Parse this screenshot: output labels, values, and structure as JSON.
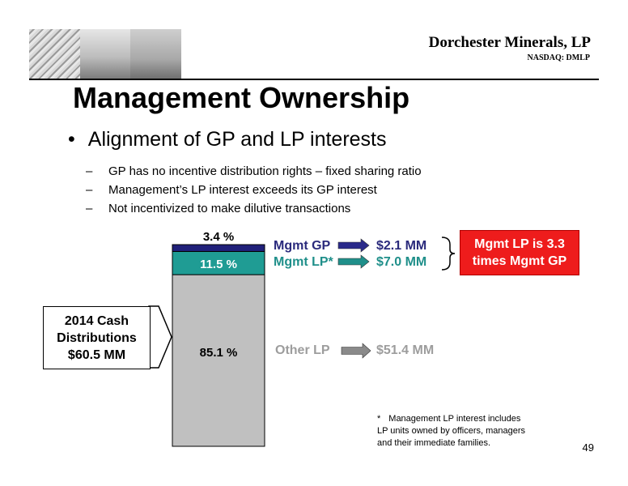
{
  "header": {
    "company": "Dorchester Minerals, LP",
    "ticker": "NASDAQ: DMLP"
  },
  "title": "Management Ownership",
  "bullet": {
    "marker": "•",
    "text": "Alignment of GP and LP interests",
    "subitems": [
      "GP has no incentive distribution rights – fixed sharing ratio",
      "Management’s LP interest exceeds its GP interest",
      "Not incentivized to make dilutive transactions"
    ],
    "dash": "–"
  },
  "chart_data": {
    "type": "bar",
    "stacked": true,
    "categories": [
      "2014 Cash Distributions"
    ],
    "series": [
      {
        "name": "Other LP",
        "values": [
          85.1
        ],
        "label": "85.1 %",
        "amount": "$51.4 MM",
        "color": "#c0c0c0"
      },
      {
        "name": "Mgmt LP*",
        "values": [
          11.5
        ],
        "label": "11.5 %",
        "amount": "$7.0 MM",
        "color": "#1f9c94"
      },
      {
        "name": "Mgmt GP",
        "values": [
          3.4
        ],
        "label": "3.4 %",
        "amount": "$2.1 MM",
        "color": "#20207a"
      }
    ],
    "ylim": [
      0,
      100
    ],
    "total_label": [
      "2014 Cash",
      "Distributions",
      "$60.5 MM"
    ]
  },
  "labels": {
    "mgmt_gp": "Mgmt GP",
    "mgmt_lp": "Mgmt LP*",
    "other_lp": "Other LP",
    "val_gp": "$2.1 MM",
    "val_lp": "$7.0 MM",
    "val_other": "$51.4 MM"
  },
  "callout": [
    "Mgmt LP is 3.3",
    "times Mgmt GP"
  ],
  "footnote": {
    "star": "*",
    "lines": [
      "Management  LP interest includes",
      "LP units owned by officers, managers",
      "and their immediate families."
    ]
  },
  "page_number": "49",
  "colors": {
    "gp": "#20207a",
    "lp": "#1f9c94",
    "other": "#c0c0c0",
    "callout": "#ee1c1c",
    "arrow_gp": "#2a2a8a",
    "arrow_lp": "#1f8f8a",
    "arrow_other": "#8a8a8a"
  }
}
